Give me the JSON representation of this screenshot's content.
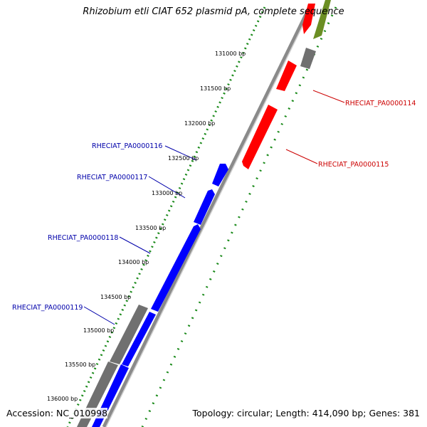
{
  "title": "Rhizobium etli CIAT 652 plasmid pA, complete sequence",
  "accession_text": "Accession: NC_010998",
  "summary_text": "Topology: circular; Length: 414,090 bp; Genes: 381",
  "tick_labels": [
    "131000 bp",
    "131500 bp",
    "132000 bp",
    "132500 bp",
    "133000 bp",
    "133500 bp",
    "134000 bp",
    "134500 bp",
    "135000 bp",
    "135500 bp",
    "136000 bp"
  ],
  "gene_labels": [
    {
      "text": "RHECIAT_PA0000114",
      "color": "#cc0000"
    },
    {
      "text": "RHECIAT_PA0000115",
      "color": "#cc0000"
    },
    {
      "text": "RHECIAT_PA0000116",
      "color": "#0000aa"
    },
    {
      "text": "RHECIAT_PA0000117",
      "color": "#0000aa"
    },
    {
      "text": "RHECIAT_PA0000118",
      "color": "#0000aa"
    },
    {
      "text": "RHECIAT_PA0000119",
      "color": "#0000aa"
    }
  ],
  "colors": {
    "forward_gene": "#0000ff",
    "reverse_gene": "#ff0000",
    "other_gene": "#707070",
    "rna_gene": "#6b8e23",
    "backbone": "#8a8a8a",
    "tick_marks": "#1a8a1a"
  }
}
